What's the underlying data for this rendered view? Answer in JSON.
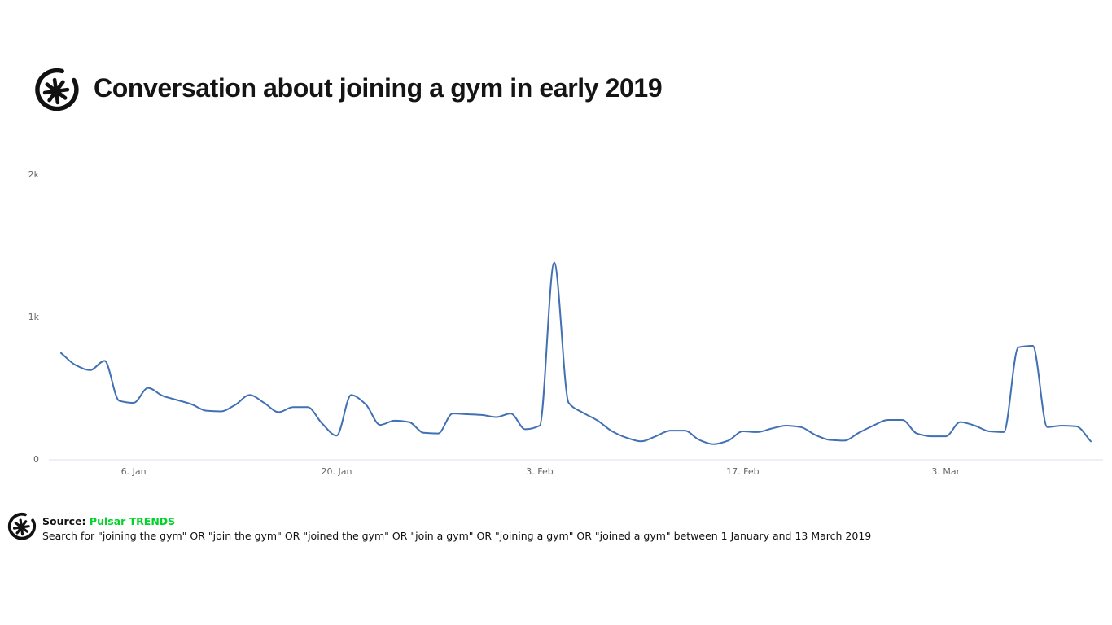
{
  "header": {
    "title": "Conversation about joining a gym in early 2019",
    "logo_name": "pulsar-logo"
  },
  "chart_data": {
    "type": "line",
    "title": "Conversation about joining a gym in early 2019",
    "xlabel": "",
    "ylabel": "",
    "ylim": [
      0,
      2000
    ],
    "grid": false,
    "legend": false,
    "line_color": "#4170b4",
    "axis_line_color": "#d9e1ea",
    "y_ticks": [
      {
        "label": "2k",
        "value": 2000
      },
      {
        "label": "1k",
        "value": 1000
      },
      {
        "label": "0",
        "value": 0
      }
    ],
    "x_ticks": [
      {
        "label": "6. Jan",
        "day_index": 5
      },
      {
        "label": "20. Jan",
        "day_index": 19
      },
      {
        "label": "3. Feb",
        "day_index": 33
      },
      {
        "label": "17. Feb",
        "day_index": 47
      },
      {
        "label": "3. Mar",
        "day_index": 61
      }
    ],
    "x": [
      "1 Jan",
      "2 Jan",
      "3 Jan",
      "4 Jan",
      "5 Jan",
      "6 Jan",
      "7 Jan",
      "8 Jan",
      "9 Jan",
      "10 Jan",
      "11 Jan",
      "12 Jan",
      "13 Jan",
      "14 Jan",
      "15 Jan",
      "16 Jan",
      "17 Jan",
      "18 Jan",
      "19 Jan",
      "20 Jan",
      "21 Jan",
      "22 Jan",
      "23 Jan",
      "24 Jan",
      "25 Jan",
      "26 Jan",
      "27 Jan",
      "28 Jan",
      "29 Jan",
      "30 Jan",
      "31 Jan",
      "1 Feb",
      "2 Feb",
      "3 Feb",
      "4 Feb",
      "5 Feb",
      "6 Feb",
      "7 Feb",
      "8 Feb",
      "9 Feb",
      "10 Feb",
      "11 Feb",
      "12 Feb",
      "13 Feb",
      "14 Feb",
      "15 Feb",
      "16 Feb",
      "17 Feb",
      "18 Feb",
      "19 Feb",
      "20 Feb",
      "21 Feb",
      "22 Feb",
      "23 Feb",
      "24 Feb",
      "25 Feb",
      "26 Feb",
      "27 Feb",
      "28 Feb",
      "1 Mar",
      "2 Mar",
      "3 Mar",
      "4 Mar",
      "5 Mar",
      "6 Mar",
      "7 Mar",
      "8 Mar",
      "9 Mar",
      "10 Mar",
      "11 Mar",
      "12 Mar",
      "13 Mar"
    ],
    "values": [
      750,
      665,
      630,
      695,
      415,
      400,
      505,
      450,
      420,
      390,
      345,
      340,
      385,
      455,
      400,
      335,
      370,
      370,
      255,
      170,
      455,
      390,
      245,
      275,
      265,
      190,
      185,
      325,
      320,
      315,
      300,
      325,
      215,
      240,
      1385,
      400,
      330,
      275,
      200,
      155,
      130,
      165,
      205,
      205,
      140,
      110,
      135,
      200,
      195,
      220,
      240,
      230,
      175,
      140,
      135,
      190,
      240,
      280,
      280,
      185,
      165,
      165,
      265,
      240,
      200,
      195,
      790,
      800,
      230,
      240,
      235,
      130
    ]
  },
  "footer": {
    "source_label": "Source:",
    "source_name": "Pulsar TRENDS",
    "source_color": "#00d428",
    "description": "Search for \"joining the gym\" OR \"join the gym\" OR \"joined the gym\" OR \"join a gym\" OR \"joining a gym\" OR \"joined a gym\" between 1 January and 13 March 2019"
  }
}
